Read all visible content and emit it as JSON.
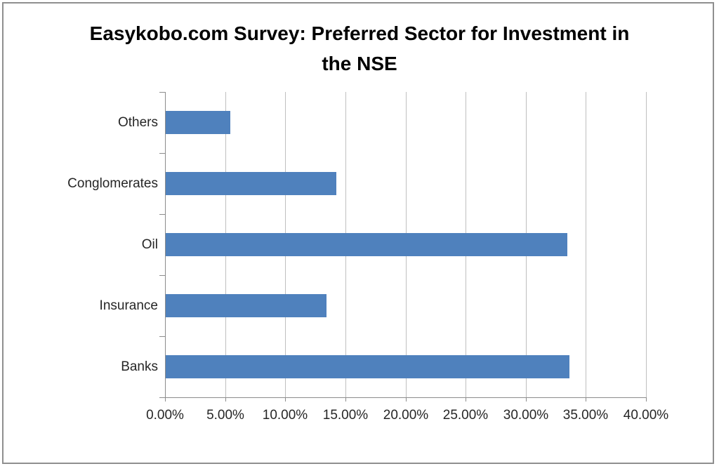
{
  "title": "Easykobo.com Survey: Preferred Sector for Investment in the NSE",
  "title_lines": [
    "Easykobo.com Survey: Preferred Sector for Investment in",
    "the NSE"
  ],
  "chart_data": {
    "type": "bar",
    "orientation": "horizontal",
    "title": "Easykobo.com Survey: Preferred Sector for Investment in the NSE",
    "categories": [
      "Others",
      "Conglomerates",
      "Oil",
      "Insurance",
      "Banks"
    ],
    "values": [
      5.4,
      14.2,
      33.4,
      13.4,
      33.6
    ],
    "unit": "%",
    "xlabel": "",
    "ylabel": "",
    "xlim": [
      0,
      40
    ],
    "x_tick_labels": [
      "0.00%",
      "5.00%",
      "10.00%",
      "15.00%",
      "20.00%",
      "25.00%",
      "30.00%",
      "35.00%",
      "40.00%"
    ],
    "x_tick_values": [
      0,
      5,
      10,
      15,
      20,
      25,
      30,
      35,
      40
    ],
    "grid": "vertical-major-gridlines",
    "legend": "none",
    "data_labels": "none"
  },
  "colors": {
    "bar": "#4f81bd",
    "gridline": "#bfbfbf",
    "axis": "#8c8c8c",
    "text": "#262626",
    "title_text": "#000000",
    "frame_border": "#8f8f8f",
    "background": "#ffffff"
  }
}
